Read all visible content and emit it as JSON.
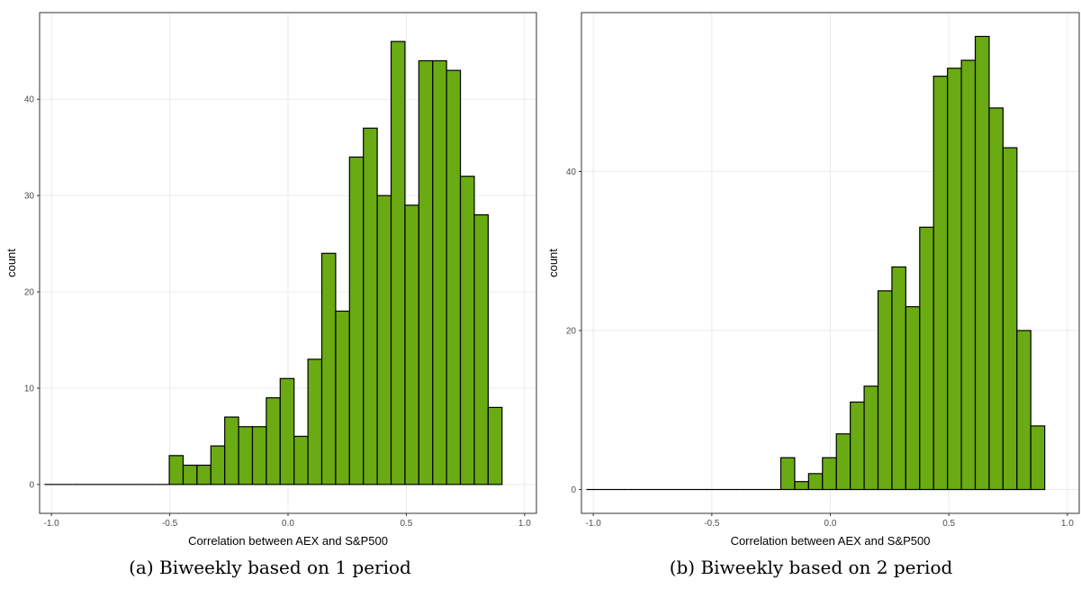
{
  "chart_data": [
    {
      "type": "bar",
      "title": "",
      "xlabel": "Correlation between AEX and S&P500",
      "ylabel": "count",
      "xlim": [
        -1.05,
        1.05
      ],
      "ylim": [
        -3,
        49
      ],
      "x_ticks": [
        -1.0,
        -0.5,
        0.0,
        0.5,
        1.0
      ],
      "x_tick_labels": [
        "-1.0",
        "-0.5",
        "0.0",
        "0.5",
        "1.0"
      ],
      "y_ticks": [
        0,
        10,
        20,
        30,
        40
      ],
      "y_tick_labels": [
        "0",
        "10",
        "20",
        "30",
        "40"
      ],
      "bin_width": 0.0586,
      "bin_start": -1.0,
      "values": [
        0,
        0,
        0,
        0,
        0,
        0,
        0,
        0,
        0,
        3,
        2,
        2,
        4,
        7,
        6,
        6,
        9,
        11,
        5,
        13,
        24,
        18,
        34,
        37,
        30,
        46,
        29,
        44,
        44,
        43,
        32,
        28,
        8
      ],
      "bar_color": "#6aaa12",
      "grid": true,
      "caption": "(a) Biweekly based on 1 period"
    },
    {
      "type": "bar",
      "title": "",
      "xlabel": "Correlation between AEX and S&P500",
      "ylabel": "count",
      "xlim": [
        -1.05,
        1.05
      ],
      "ylim": [
        -3,
        60
      ],
      "x_ticks": [
        -1.0,
        -0.5,
        0.0,
        0.5,
        1.0
      ],
      "x_tick_labels": [
        "-1.0",
        "-0.5",
        "0.0",
        "0.5",
        "1.0"
      ],
      "y_ticks": [
        0,
        20,
        40
      ],
      "y_tick_labels": [
        "0",
        "20",
        "40"
      ],
      "bin_width": 0.0586,
      "bin_start": -1.0,
      "values": [
        0,
        0,
        0,
        0,
        0,
        0,
        0,
        0,
        0,
        0,
        0,
        0,
        0,
        0,
        4,
        1,
        2,
        4,
        7,
        11,
        13,
        25,
        28,
        23,
        33,
        52,
        53,
        54,
        57,
        48,
        43,
        20,
        8
      ],
      "bar_color": "#6aaa12",
      "grid": true,
      "caption": "(b) Biweekly based on 2 period"
    }
  ]
}
